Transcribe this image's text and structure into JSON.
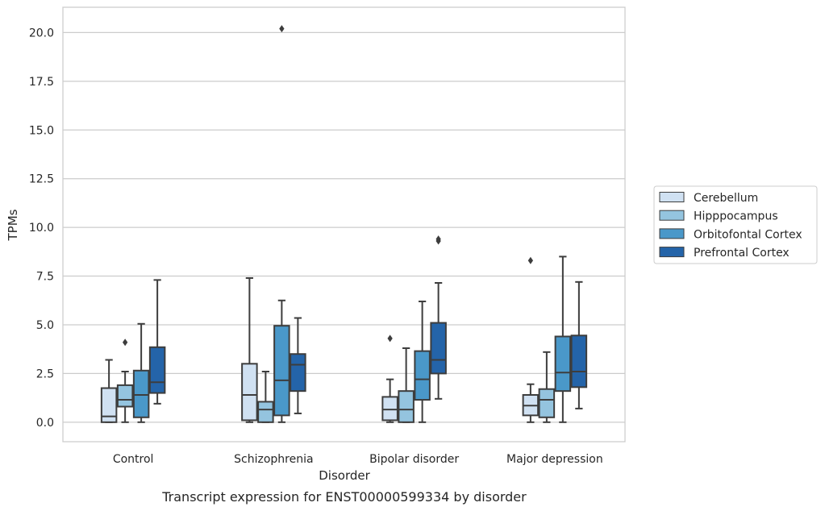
{
  "caption": "Transcript expression for ENST00000599334 by disorder",
  "chart_data": {
    "type": "box",
    "xlabel": "Disorder",
    "ylabel": "TPMs",
    "ylim": [
      -1,
      21.3
    ],
    "yticks": [
      0.0,
      2.5,
      5.0,
      7.5,
      10.0,
      12.5,
      15.0,
      17.5,
      20.0
    ],
    "ytick_labels": [
      "0.0",
      "2.5",
      "5.0",
      "7.5",
      "10.0",
      "12.5",
      "15.0",
      "17.5",
      "20.0"
    ],
    "grid": true,
    "legend_position": "right",
    "categories": [
      "Control",
      "Schizophrenia",
      "Bipolar disorder",
      "Major depression"
    ],
    "series": [
      {
        "name": "Cerebellum",
        "color": "#d0e1f2",
        "boxes": [
          {
            "whislo": 0.0,
            "q1": 0.0,
            "med": 0.3,
            "q3": 1.75,
            "whishi": 3.2,
            "fliers": []
          },
          {
            "whislo": 0.0,
            "q1": 0.1,
            "med": 1.4,
            "q3": 3.0,
            "whishi": 7.4,
            "fliers": []
          },
          {
            "whislo": 0.0,
            "q1": 0.1,
            "med": 0.65,
            "q3": 1.3,
            "whishi": 2.2,
            "fliers": [
              4.3
            ]
          },
          {
            "whislo": 0.0,
            "q1": 0.35,
            "med": 0.85,
            "q3": 1.4,
            "whishi": 1.95,
            "fliers": [
              8.3
            ]
          }
        ]
      },
      {
        "name": "Hipppocampus",
        "color": "#94c4df",
        "boxes": [
          {
            "whislo": 0.0,
            "q1": 0.8,
            "med": 1.15,
            "q3": 1.9,
            "whishi": 2.6,
            "fliers": [
              4.1
            ]
          },
          {
            "whislo": 0.0,
            "q1": 0.0,
            "med": 0.65,
            "q3": 1.05,
            "whishi": 2.6,
            "fliers": []
          },
          {
            "whislo": 0.0,
            "q1": 0.0,
            "med": 0.65,
            "q3": 1.6,
            "whishi": 3.8,
            "fliers": []
          },
          {
            "whislo": 0.0,
            "q1": 0.25,
            "med": 1.15,
            "q3": 1.7,
            "whishi": 3.6,
            "fliers": []
          }
        ]
      },
      {
        "name": "Orbitofontal Cortex",
        "color": "#4a98c9",
        "boxes": [
          {
            "whislo": 0.0,
            "q1": 0.25,
            "med": 1.4,
            "q3": 2.65,
            "whishi": 5.05,
            "fliers": []
          },
          {
            "whislo": 0.0,
            "q1": 0.35,
            "med": 2.15,
            "q3": 4.95,
            "whishi": 6.25,
            "fliers": [
              20.2
            ]
          },
          {
            "whislo": 0.0,
            "q1": 1.15,
            "med": 2.2,
            "q3": 3.65,
            "whishi": 6.2,
            "fliers": []
          },
          {
            "whislo": 0.0,
            "q1": 1.6,
            "med": 2.55,
            "q3": 4.4,
            "whishi": 8.5,
            "fliers": []
          }
        ]
      },
      {
        "name": "Prefrontal Cortex",
        "color": "#2464a9",
        "boxes": [
          {
            "whislo": 0.95,
            "q1": 1.5,
            "med": 2.05,
            "q3": 3.85,
            "whishi": 7.3,
            "fliers": []
          },
          {
            "whislo": 0.45,
            "q1": 1.6,
            "med": 2.95,
            "q3": 3.5,
            "whishi": 5.35,
            "fliers": []
          },
          {
            "whislo": 1.2,
            "q1": 2.5,
            "med": 3.2,
            "q3": 5.1,
            "whishi": 7.15,
            "fliers": [
              9.3,
              9.4
            ]
          },
          {
            "whislo": 0.7,
            "q1": 1.8,
            "med": 2.6,
            "q3": 4.45,
            "whishi": 7.2,
            "fliers": []
          }
        ]
      }
    ]
  }
}
